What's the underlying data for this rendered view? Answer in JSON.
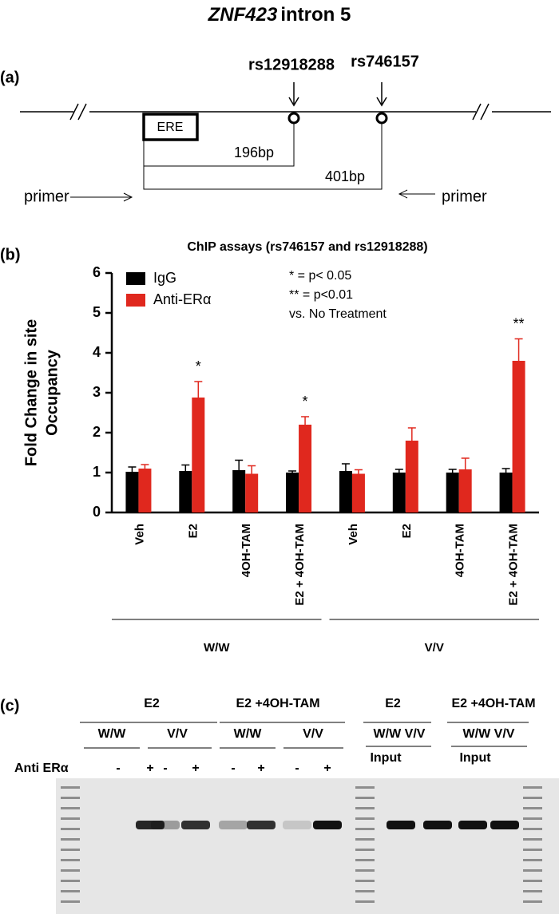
{
  "title": {
    "gene": "ZNF423",
    "region": "intron 5"
  },
  "panel_a": {
    "label": "(a)",
    "snps": [
      "rs12918288",
      "rs746157"
    ],
    "element": "ERE",
    "distances": [
      "196bp",
      "401bp"
    ],
    "primers": [
      "primer",
      "primer"
    ]
  },
  "chart_data": {
    "type": "bar",
    "panel_label": "(b)",
    "title": "ChIP assays (rs746157 and rs12918288)",
    "y_label": [
      "Fold Change in site",
      "Occupancy"
    ],
    "categories": [
      "Veh",
      "E2",
      "4OH-TAM",
      "E2 + 4OH-TAM",
      "Veh",
      "E2",
      "4OH-TAM",
      "E2 + 4OH-TAM"
    ],
    "groups": [
      "W/W",
      "V/V"
    ],
    "series": [
      {
        "name": "IgG",
        "color": "#000000",
        "values": [
          1.02,
          1.04,
          1.06,
          1.0,
          1.04,
          1.0,
          1.0,
          1.0
        ],
        "errors": [
          0.12,
          0.15,
          0.25,
          0.04,
          0.18,
          0.08,
          0.08,
          0.1
        ]
      },
      {
        "name": "Anti-ERα",
        "color": "#e0281e",
        "values": [
          1.1,
          2.88,
          0.97,
          2.2,
          0.97,
          1.8,
          1.08,
          3.8
        ],
        "errors": [
          0.1,
          0.4,
          0.2,
          0.2,
          0.1,
          0.32,
          0.28,
          0.55
        ],
        "significance": [
          null,
          "*",
          null,
          "*",
          null,
          null,
          null,
          "**"
        ]
      }
    ],
    "notes": [
      "* = p< 0.05",
      "** = p<0.01",
      "vs. No Treatment"
    ],
    "ylim": [
      0,
      6
    ],
    "yticks": [
      0,
      1,
      2,
      3,
      4,
      5,
      6
    ]
  },
  "panel_c": {
    "label": "(c)",
    "treatments": [
      "E2",
      "E2 +4OH-TAM",
      "E2",
      "E2 +4OH-TAM"
    ],
    "genotypes": [
      "W/W",
      "V/V",
      "W/W",
      "V/V"
    ],
    "input_genotypes": [
      "W/W V/V",
      "W/W V/V"
    ],
    "input_labels": [
      "Input",
      "Input"
    ],
    "antibody": "Anti ERα",
    "signs": [
      "-",
      "+",
      "-",
      "+",
      "-",
      "+",
      "-",
      "+"
    ]
  }
}
